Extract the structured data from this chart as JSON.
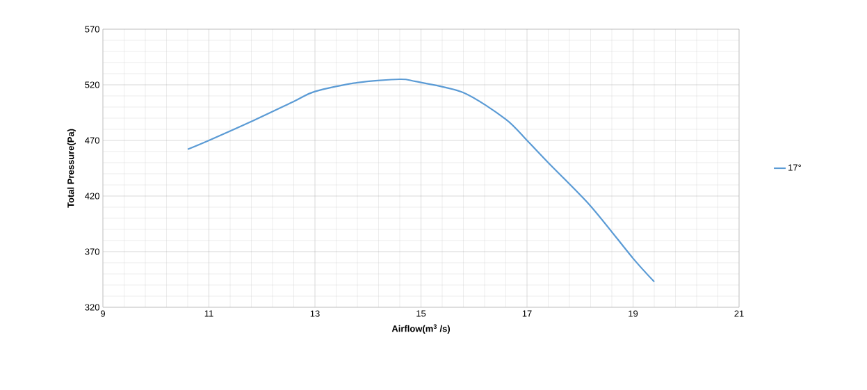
{
  "chart_data": {
    "type": "line",
    "xlabel": "Airflow(m$^{3}$ /s)",
    "ylabel": "Total Pressure(Pa)",
    "x": [
      10.6,
      11.0,
      11.8,
      12.6,
      13.0,
      13.8,
      14.6,
      14.9,
      15.8,
      16.6,
      17.0,
      17.4,
      18.2,
      19.0,
      19.4
    ],
    "series": [
      {
        "name": "17°",
        "color": "#5b9bd5",
        "values": [
          462,
          470,
          487,
          505,
          514,
          522,
          525,
          523,
          513,
          489,
          470,
          450,
          411,
          364,
          343
        ]
      }
    ],
    "xlim": [
      9,
      21
    ],
    "ylim": [
      320,
      570
    ],
    "xticks": [
      9,
      11,
      13,
      15,
      17,
      19,
      21
    ],
    "yticks": [
      320,
      370,
      420,
      470,
      520,
      570
    ],
    "grid": true,
    "legend": "right"
  }
}
